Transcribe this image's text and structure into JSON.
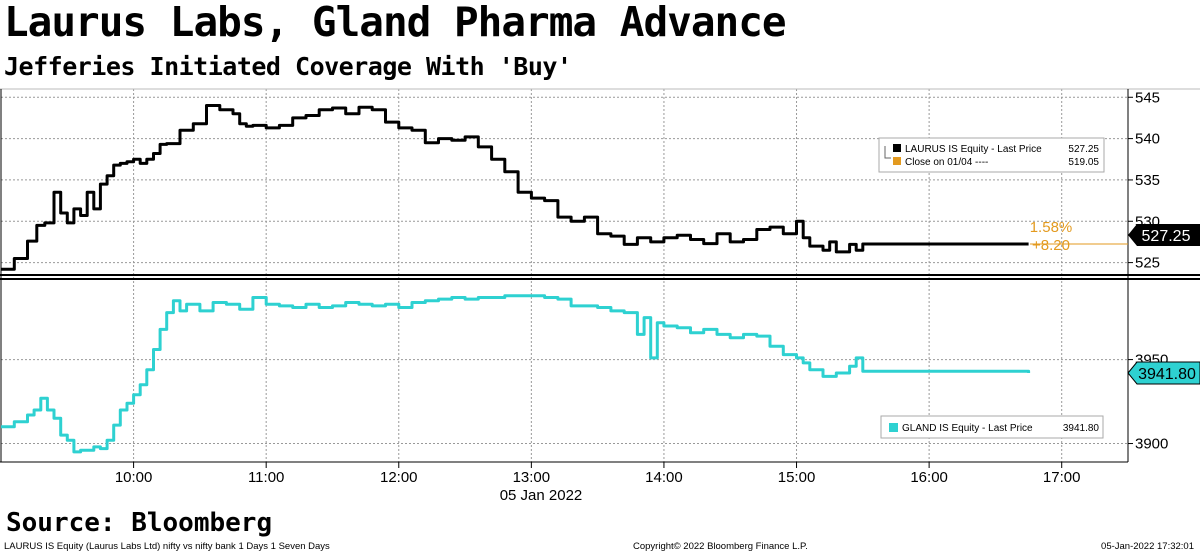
{
  "headline": "Laurus Labs, Gland Pharma Advance",
  "subheadline": "Jefferies Initiated Coverage With 'Buy'",
  "source": "Source: Bloomberg",
  "footer": {
    "left": "LAURUS IS Equity (Laurus Labs Ltd) nifty vs nifty bank 1 Days 1 Seven Days",
    "center": "Copyright© 2022 Bloomberg Finance L.P.",
    "right": "05-Jan-2022 17:32:01"
  },
  "colors": {
    "laurus": "#000000",
    "gland": "#2ed1d1",
    "close": "#e39a1f",
    "grid": "#999999"
  },
  "chart_data": {
    "type": "line",
    "x_axis": {
      "ticks": [
        "10:00",
        "11:00",
        "12:00",
        "13:00",
        "14:00",
        "15:00",
        "16:00",
        "17:00"
      ],
      "date_label": "05 Jan 2022",
      "range_hours": [
        9.0,
        17.5
      ]
    },
    "panels": [
      {
        "name": "LAURUS IS Equity",
        "ylim": [
          523.5,
          546
        ],
        "y_ticks": [
          "525",
          "530",
          "535",
          "540",
          "545"
        ],
        "last_price_label": "527.25",
        "legend": {
          "line1": "LAURUS IS Equity - Last Price",
          "line1_value": "527.25",
          "line2": "Close on 01/04 ----",
          "line2_value": "519.05"
        },
        "change_pct": "1.58%",
        "change_abs": "+8.20",
        "series": {
          "name": "LAURUS IS Equity - Last Price",
          "x": [
            9.0,
            9.1,
            9.2,
            9.27,
            9.33,
            9.4,
            9.45,
            9.5,
            9.55,
            9.6,
            9.65,
            9.7,
            9.75,
            9.8,
            9.85,
            9.9,
            9.95,
            10.0,
            10.05,
            10.1,
            10.15,
            10.2,
            10.25,
            10.35,
            10.45,
            10.55,
            10.65,
            10.75,
            10.8,
            10.85,
            10.9,
            11.0,
            11.1,
            11.2,
            11.3,
            11.4,
            11.5,
            11.6,
            11.7,
            11.8,
            11.9,
            12.0,
            12.1,
            12.2,
            12.3,
            12.4,
            12.5,
            12.6,
            12.7,
            12.8,
            12.9,
            13.0,
            13.1,
            13.2,
            13.3,
            13.4,
            13.5,
            13.6,
            13.7,
            13.8,
            13.9,
            14.0,
            14.1,
            14.2,
            14.3,
            14.4,
            14.5,
            14.6,
            14.7,
            14.8,
            14.9,
            15.0,
            15.05,
            15.1,
            15.2,
            15.25,
            15.3,
            15.4,
            15.45,
            15.5,
            16.75
          ],
          "y": [
            524.2,
            525.5,
            527.6,
            529.5,
            529.8,
            533.5,
            531.0,
            529.8,
            531.5,
            530.7,
            533.5,
            531.5,
            534.5,
            535.5,
            536.8,
            537.0,
            537.2,
            537.5,
            537.0,
            537.5,
            538.2,
            539.3,
            539.4,
            541.0,
            541.8,
            544.0,
            543.5,
            543.0,
            541.8,
            541.5,
            541.6,
            541.3,
            541.6,
            542.5,
            542.8,
            543.5,
            543.7,
            543.0,
            543.8,
            543.5,
            542.0,
            541.3,
            541.0,
            539.5,
            540.0,
            539.8,
            540.2,
            539.0,
            537.5,
            536.0,
            533.5,
            532.8,
            532.5,
            530.5,
            530.0,
            530.5,
            528.5,
            528.2,
            527.2,
            528.0,
            527.5,
            528.0,
            528.3,
            527.8,
            527.3,
            528.5,
            527.5,
            527.8,
            529.0,
            529.3,
            528.5,
            530.0,
            528.0,
            527.0,
            526.5,
            527.5,
            526.3,
            527.2,
            526.5,
            527.25,
            527.25
          ]
        },
        "reference_line": {
          "name": "Close on 01/04",
          "value": 519.05
        }
      },
      {
        "name": "GLAND IS Equity",
        "ylim": [
          3889,
          3998
        ],
        "y_ticks": [
          "3900",
          "3950"
        ],
        "last_price_label": "3941.80",
        "legend": {
          "line1": "GLAND IS Equity - Last Price",
          "line1_value": "3941.80"
        },
        "series": {
          "name": "GLAND IS Equity - Last Price",
          "x": [
            9.0,
            9.1,
            9.2,
            9.25,
            9.3,
            9.35,
            9.4,
            9.45,
            9.5,
            9.55,
            9.6,
            9.7,
            9.75,
            9.8,
            9.85,
            9.9,
            9.95,
            10.0,
            10.05,
            10.1,
            10.15,
            10.2,
            10.25,
            10.3,
            10.35,
            10.4,
            10.5,
            10.6,
            10.7,
            10.8,
            10.9,
            11.0,
            11.1,
            11.2,
            11.3,
            11.4,
            11.5,
            11.6,
            11.7,
            11.8,
            11.9,
            12.0,
            12.1,
            12.2,
            12.3,
            12.4,
            12.5,
            12.6,
            12.7,
            12.8,
            12.9,
            13.0,
            13.1,
            13.2,
            13.3,
            13.4,
            13.5,
            13.6,
            13.7,
            13.8,
            13.85,
            13.9,
            13.95,
            14.0,
            14.1,
            14.2,
            14.3,
            14.4,
            14.5,
            14.6,
            14.7,
            14.8,
            14.9,
            15.0,
            15.05,
            15.1,
            15.2,
            15.3,
            15.4,
            15.45,
            15.5,
            16.75
          ],
          "y": [
            3910,
            3913,
            3917,
            3920,
            3927,
            3920,
            3915,
            3905,
            3902,
            3895,
            3896,
            3898,
            3897,
            3902,
            3911,
            3920,
            3924,
            3929,
            3935,
            3944,
            3956,
            3968,
            3978,
            3985,
            3979,
            3983,
            3979,
            3984,
            3983,
            3980,
            3987,
            3983,
            3982,
            3981,
            3983,
            3981,
            3982,
            3984,
            3983,
            3982,
            3983,
            3981,
            3984,
            3985,
            3986,
            3987,
            3986,
            3987,
            3987,
            3988,
            3988,
            3988,
            3987,
            3986,
            3982,
            3982,
            3981,
            3979,
            3978,
            3965,
            3975,
            3951,
            3972,
            3970,
            3969,
            3966,
            3968,
            3965,
            3963,
            3965,
            3964,
            3958,
            3953,
            3951,
            3948,
            3944,
            3940,
            3942,
            3946,
            3951,
            3943,
            3942
          ]
        }
      }
    ]
  }
}
